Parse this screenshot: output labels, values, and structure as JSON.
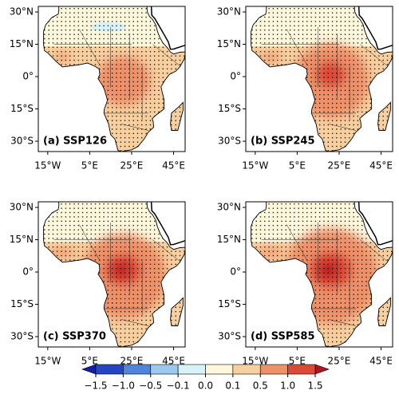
{
  "panels": [
    {
      "label": "(a) SSP126"
    },
    {
      "label": "(b) SSP245"
    },
    {
      "label": "(c) SSP370"
    },
    {
      "label": "(d) SSP585"
    }
  ],
  "lat_ticks": [
    {
      "value": 30,
      "label": "30°N"
    },
    {
      "value": 15,
      "label": "15°N"
    },
    {
      "value": 0,
      "label": "0°"
    },
    {
      "value": -15,
      "label": "15°S"
    },
    {
      "value": -30,
      "label": "30°S"
    }
  ],
  "lon_ticks": [
    {
      "value": -15,
      "label": "15°W"
    },
    {
      "value": 5,
      "label": "5°E"
    },
    {
      "value": 25,
      "label": "25°E"
    },
    {
      "value": 45,
      "label": "45°E"
    }
  ],
  "colorbar": {
    "ticks": [
      {
        "value": -1.5,
        "label": "−1.5"
      },
      {
        "value": -1.0,
        "label": "−1.0"
      },
      {
        "value": -0.5,
        "label": "−0.5"
      },
      {
        "value": -0.1,
        "label": "−0.1"
      },
      {
        "value": 0,
        "label": "0.0"
      },
      0.1,
      0.5,
      {
        "value": 1.0,
        "label": "1.0"
      },
      1.5
    ],
    "colors": [
      "#1020a0",
      "#2645c4",
      "#4f86dc",
      "#9cc8ee",
      "#d8f2f8",
      "#fdf7dc",
      "#f8cf9e",
      "#ee9168",
      "#dc4a36",
      "#b0141e"
    ]
  }
}
